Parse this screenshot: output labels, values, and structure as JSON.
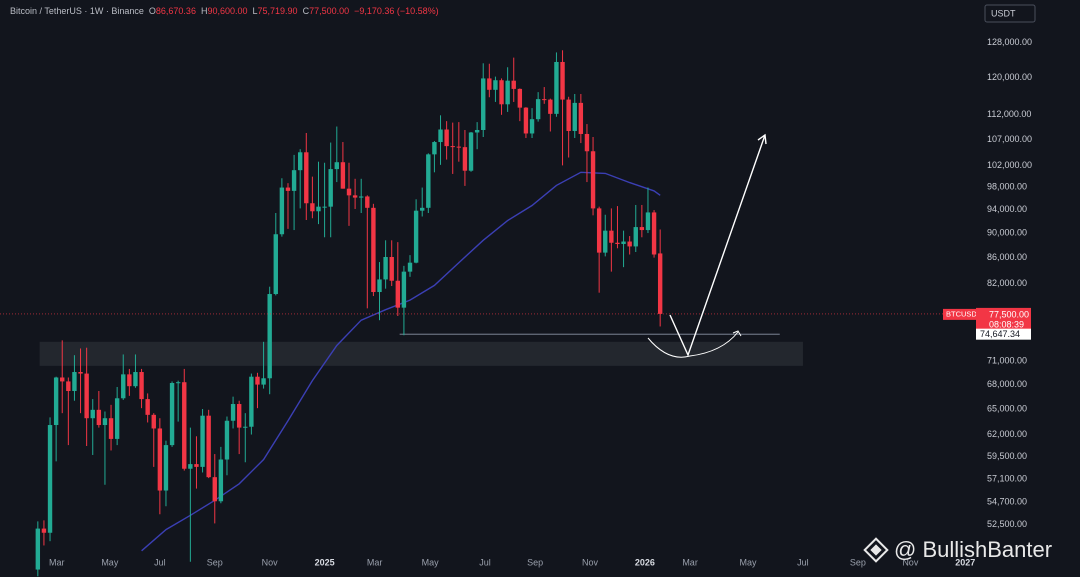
{
  "chart_data": {
    "type": "candlestick",
    "header": {
      "title": "Bitcoin / TetherUS · 1W · Binance",
      "ohlc_letters": [
        "O",
        "H",
        "L",
        "C"
      ],
      "change": "−9,170.36 (−10.58%)"
    },
    "currency": "USDT",
    "watermark": "@ BullishBanter",
    "up_color": "#22ab94",
    "down_color": "#f23645",
    "candles": [
      [
        48300,
        52800,
        47700,
        52100
      ],
      [
        52100,
        52900,
        50500,
        51700
      ],
      [
        51700,
        64000,
        50900,
        63100
      ],
      [
        63100,
        69000,
        59000,
        68900
      ],
      [
        68900,
        73800,
        64500,
        68400
      ],
      [
        68400,
        68900,
        60800,
        67200
      ],
      [
        67200,
        71800,
        66000,
        69600
      ],
      [
        69600,
        72700,
        64500,
        69400
      ],
      [
        69400,
        72800,
        60700,
        63900
      ],
      [
        63900,
        66200,
        59700,
        64900
      ],
      [
        64900,
        67200,
        62800,
        63100
      ],
      [
        63100,
        64700,
        56500,
        63900
      ],
      [
        63900,
        65500,
        60200,
        61500
      ],
      [
        61500,
        67700,
        60800,
        66300
      ],
      [
        66300,
        71900,
        66100,
        69300
      ],
      [
        69300,
        70000,
        66600,
        67800
      ],
      [
        67800,
        71900,
        67600,
        69600
      ],
      [
        69600,
        70000,
        65100,
        66200
      ],
      [
        66200,
        66900,
        63400,
        64300
      ],
      [
        64300,
        64500,
        58400,
        62700
      ],
      [
        62700,
        63900,
        53500,
        55900
      ],
      [
        55900,
        61300,
        54300,
        60800
      ],
      [
        60800,
        68400,
        60600,
        68200
      ],
      [
        68200,
        68500,
        63500,
        68300
      ],
      [
        68300,
        70000,
        58000,
        58200
      ],
      [
        58200,
        62800,
        49000,
        58700
      ],
      [
        58700,
        61800,
        56100,
        58400
      ],
      [
        58400,
        65000,
        57800,
        64200
      ],
      [
        64200,
        64900,
        57200,
        57300
      ],
      [
        57300,
        59800,
        52600,
        54800
      ],
      [
        54800,
        60600,
        54600,
        59200
      ],
      [
        59200,
        64100,
        57500,
        63600
      ],
      [
        63600,
        66500,
        62700,
        65600
      ],
      [
        65600,
        66000,
        59800,
        62800
      ],
      [
        62800,
        64500,
        58900,
        62900
      ],
      [
        62900,
        69400,
        62000,
        69000
      ],
      [
        69000,
        69500,
        65100,
        68000
      ],
      [
        68000,
        73600,
        67500,
        68800
      ],
      [
        68800,
        81500,
        66800,
        80400
      ],
      [
        80400,
        93400,
        80200,
        89800
      ],
      [
        89800,
        99600,
        89400,
        97900
      ],
      [
        97900,
        98700,
        90700,
        97300
      ],
      [
        97300,
        104000,
        90500,
        101100
      ],
      [
        101100,
        105100,
        94200,
        104500
      ],
      [
        104500,
        108300,
        92200,
        95100
      ],
      [
        95100,
        99900,
        92500,
        93700
      ],
      [
        93700,
        102700,
        91500,
        94500
      ],
      [
        94500,
        102500,
        89300,
        94500
      ],
      [
        94500,
        106400,
        89300,
        101300
      ],
      [
        101300,
        109600,
        98900,
        102600
      ],
      [
        102600,
        106500,
        97700,
        97700
      ],
      [
        97700,
        102500,
        91200,
        96500
      ],
      [
        96500,
        99500,
        94100,
        96100
      ],
      [
        96100,
        99500,
        93400,
        96300
      ],
      [
        96300,
        96500,
        78300,
        94300
      ],
      [
        94300,
        95000,
        80100,
        80700
      ],
      [
        80700,
        85300,
        76600,
        82600
      ],
      [
        82600,
        88800,
        81200,
        86100
      ],
      [
        86100,
        88800,
        81600,
        82400
      ],
      [
        82400,
        88500,
        77200,
        78400
      ],
      [
        78400,
        84700,
        74500,
        83800
      ],
      [
        83800,
        86400,
        83000,
        85200
      ],
      [
        85200,
        95800,
        85100,
        93800
      ],
      [
        93800,
        97900,
        92800,
        94300
      ],
      [
        94300,
        104300,
        93400,
        104100
      ],
      [
        104100,
        106700,
        100700,
        106500
      ],
      [
        106500,
        111900,
        102100,
        109000
      ],
      [
        109000,
        110700,
        103100,
        105700
      ],
      [
        105700,
        110400,
        100400,
        105600
      ],
      [
        105600,
        110500,
        102700,
        105500
      ],
      [
        105500,
        108900,
        98200,
        101000
      ],
      [
        101000,
        108500,
        100800,
        108400
      ],
      [
        108400,
        110500,
        105100,
        108900
      ],
      [
        108900,
        123200,
        107500,
        119800
      ],
      [
        119800,
        123100,
        115700,
        117300
      ],
      [
        117300,
        120200,
        114700,
        119400
      ],
      [
        119400,
        119800,
        112000,
        114200
      ],
      [
        114200,
        122300,
        112600,
        119300
      ],
      [
        119300,
        124500,
        114700,
        117500
      ],
      [
        117500,
        117600,
        110700,
        113500
      ],
      [
        113500,
        113600,
        107300,
        108200
      ],
      [
        108200,
        113400,
        107300,
        111100
      ],
      [
        111100,
        116800,
        110600,
        115300
      ],
      [
        115300,
        117900,
        114300,
        115200
      ],
      [
        115200,
        115400,
        108600,
        112200
      ],
      [
        112200,
        125700,
        111600,
        123500
      ],
      [
        123500,
        126200,
        102000,
        115200
      ],
      [
        115200,
        115800,
        103500,
        108700
      ],
      [
        108700,
        116400,
        107300,
        114500
      ],
      [
        114500,
        116400,
        106300,
        108100
      ],
      [
        108100,
        110100,
        98900,
        104700
      ],
      [
        104700,
        107500,
        93000,
        94200
      ],
      [
        94200,
        94500,
        80600,
        86800
      ],
      [
        86800,
        93100,
        86200,
        90400
      ],
      [
        90400,
        94200,
        83800,
        88400
      ],
      [
        88400,
        94600,
        87500,
        88200
      ],
      [
        88200,
        90400,
        84500,
        88600
      ],
      [
        88600,
        89500,
        86500,
        87800
      ],
      [
        87800,
        94800,
        86900,
        91000
      ],
      [
        91000,
        94800,
        89300,
        90500
      ],
      [
        90500,
        97900,
        90000,
        93500
      ],
      [
        93500,
        93900,
        86000,
        86500
      ],
      [
        86670.36,
        90600,
        75719.9,
        77500
      ]
    ],
    "value_labels": [
      "86,670.36",
      "90,600.00",
      "75,719.90",
      "77,500.00"
    ],
    "ma": {
      "color": "#3b3fb4",
      "x": [
        17,
        21,
        25,
        29,
        33,
        37,
        41,
        45,
        49,
        53,
        57,
        61,
        65,
        69,
        73,
        77,
        81,
        85,
        89,
        93,
        97,
        101,
        102
      ],
      "values": [
        50000,
        52000,
        53400,
        54900,
        56600,
        59200,
        63600,
        68500,
        73100,
        76600,
        78100,
        79500,
        81700,
        85200,
        88800,
        92100,
        94700,
        98300,
        100700,
        100500,
        98800,
        97300,
        96500
      ]
    },
    "zone": {
      "ylim": [
        70400,
        73600
      ],
      "xlim": [
        0.3,
        125.4
      ]
    },
    "level": {
      "value": 74647.34,
      "label": "74,647.34",
      "x": [
        59.3,
        121.6
      ]
    },
    "price_tag": {
      "symbol": "BTCUSDT",
      "countdown": "08:08:39"
    },
    "log_scale": true,
    "grid": false,
    "ylim": [
      49800,
      138500
    ],
    "yticks": [
      {
        "value": 128000,
        "label": "128,000.00"
      },
      {
        "value": 120000,
        "label": "120,000.00"
      },
      {
        "value": 112000,
        "label": "112,000.00"
      },
      {
        "value": 107000,
        "label": "107,000.00"
      },
      {
        "value": 102000,
        "label": "102,000.00"
      },
      {
        "value": 98000,
        "label": "98,000.00"
      },
      {
        "value": 94000,
        "label": "94,000.00"
      },
      {
        "value": 90000,
        "label": "90,000.00"
      },
      {
        "value": 86000,
        "label": "86,000.00"
      },
      {
        "value": 82000,
        "label": "82,000.00"
      },
      {
        "value": 71000,
        "label": "71,000.00"
      },
      {
        "value": 68000,
        "label": "68,000.00"
      },
      {
        "value": 65000,
        "label": "65,000.00"
      },
      {
        "value": 62000,
        "label": "62,000.00"
      },
      {
        "value": 59500,
        "label": "59,500.00"
      },
      {
        "value": 57100,
        "label": "57,100.00"
      },
      {
        "value": 54700,
        "label": "54,700.00"
      },
      {
        "value": 52500,
        "label": "52,500.00"
      }
    ],
    "xlim": [
      -6.2,
      153.6
    ],
    "xticks": [
      {
        "value": 3.1,
        "label": "Mar"
      },
      {
        "value": 11.8,
        "label": "May"
      },
      {
        "value": 20,
        "label": "Jul"
      },
      {
        "value": 29,
        "label": "Sep"
      },
      {
        "value": 38,
        "label": "Nov"
      },
      {
        "value": 47,
        "label": "2025"
      },
      {
        "value": 55.2,
        "label": "Mar"
      },
      {
        "value": 64.3,
        "label": "May"
      },
      {
        "value": 73.3,
        "label": "Jul"
      },
      {
        "value": 81.5,
        "label": "Sep"
      },
      {
        "value": 90.5,
        "label": "Nov"
      },
      {
        "value": 99.5,
        "label": "2026"
      },
      {
        "value": 106.9,
        "label": "Mar"
      },
      {
        "value": 116.4,
        "label": "May"
      },
      {
        "value": 125.4,
        "label": "Jul"
      },
      {
        "value": 134.4,
        "label": "Sep"
      },
      {
        "value": 143,
        "label": "Nov"
      },
      {
        "value": 152,
        "label": "2027"
      }
    ]
  }
}
